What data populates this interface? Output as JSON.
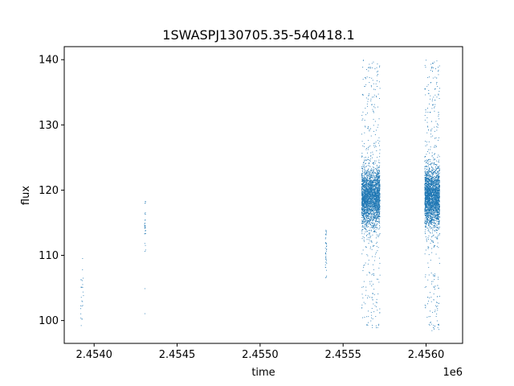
{
  "chart_data": {
    "type": "scatter",
    "title": "1SWASPJ130705.35-540418.1",
    "xlabel": "time",
    "ylabel": "flux",
    "x_offset_label": "1e6",
    "xlim": [
      2453820,
      2456220
    ],
    "ylim": [
      96.5,
      142.0
    ],
    "x_ticks": [
      {
        "value": 2454000,
        "label": "2.4540"
      },
      {
        "value": 2454500,
        "label": "2.4545"
      },
      {
        "value": 2455000,
        "label": "2.4550"
      },
      {
        "value": 2455500,
        "label": "2.4555"
      },
      {
        "value": 2456000,
        "label": "2.4560"
      }
    ],
    "y_ticks": [
      {
        "value": 100,
        "label": "100"
      },
      {
        "value": 110,
        "label": "110"
      },
      {
        "value": 120,
        "label": "120"
      },
      {
        "value": 130,
        "label": "130"
      },
      {
        "value": 140,
        "label": "140"
      }
    ],
    "grid": false,
    "marker_color": "#1f77b4",
    "clusters": [
      {
        "x_center": 2453925,
        "x_spread": 10,
        "y_center": 104,
        "y_spread": 4,
        "y_min": 98.5,
        "y_max": 110.5,
        "count": 25
      },
      {
        "x_center": 2454305,
        "x_spread": 4,
        "y_center": 115,
        "y_spread": 2,
        "y_min": 98.5,
        "y_max": 118.5,
        "count": 30
      },
      {
        "x_center": 2455395,
        "x_spread": 4,
        "y_center": 110,
        "y_spread": 2.5,
        "y_min": 105.0,
        "y_max": 114.0,
        "count": 40
      },
      {
        "x_center": 2455665,
        "x_spread": 55,
        "y_center": 119,
        "y_spread": 2.2,
        "y_min": 98.5,
        "y_max": 140.0,
        "count": 3000
      },
      {
        "x_center": 2456035,
        "x_spread": 45,
        "y_center": 119,
        "y_spread": 2.2,
        "y_min": 98.5,
        "y_max": 140.0,
        "count": 3000
      }
    ]
  }
}
